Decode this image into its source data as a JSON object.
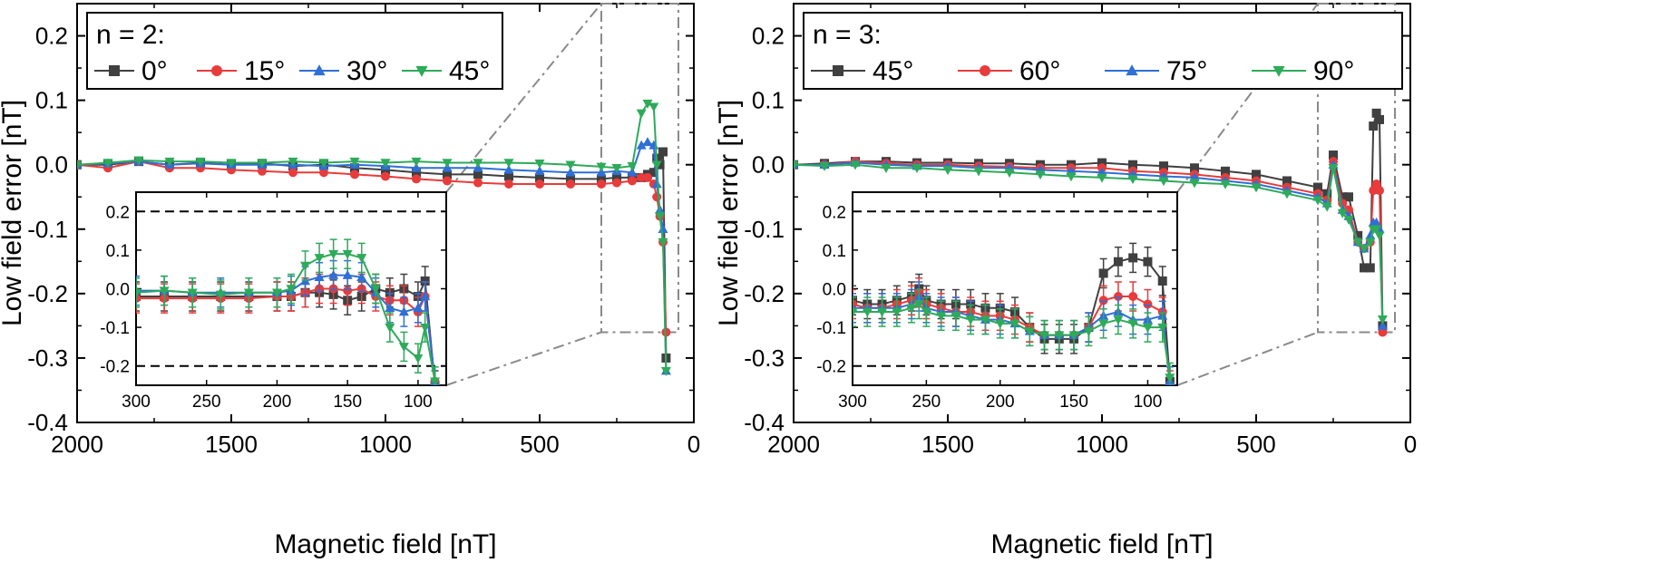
{
  "chart_data": [
    {
      "type": "line",
      "panel": "left",
      "legend_title": "n = 2:",
      "xlabel": "Magnetic field [nT]",
      "ylabel": "Low field error [nT]",
      "xlim": [
        2000,
        0
      ],
      "ylim": [
        -0.4,
        0.25
      ],
      "x_ticks": [
        "2000",
        "1500",
        "1000",
        "500",
        "0"
      ],
      "y_ticks": [
        "0.2",
        "0.1",
        "0.0",
        "-0.1",
        "-0.2",
        "-0.3",
        "-0.4"
      ],
      "legend_position": "top-left",
      "zoom_region": {
        "x": [
          300,
          50
        ],
        "y": [
          -0.26,
          0.25
        ]
      },
      "series": [
        {
          "name": "0°",
          "color": "#404040",
          "marker": "square",
          "x": [
            2000,
            1900,
            1800,
            1700,
            1600,
            1500,
            1400,
            1300,
            1200,
            1100,
            1000,
            900,
            800,
            700,
            600,
            500,
            400,
            300,
            250,
            200,
            170,
            150,
            130,
            120,
            110,
            100,
            90
          ],
          "y": [
            0.0,
            0.0,
            0.005,
            0.0,
            0.003,
            0.0,
            0.002,
            -0.002,
            0.0,
            -0.005,
            -0.008,
            -0.012,
            -0.015,
            -0.015,
            -0.018,
            -0.02,
            -0.022,
            -0.022,
            -0.02,
            -0.02,
            -0.02,
            -0.015,
            -0.012,
            0.01,
            0.0,
            0.02,
            -0.3
          ]
        },
        {
          "name": "15°",
          "color": "#e83b3b",
          "marker": "circle",
          "x": [
            2000,
            1900,
            1800,
            1700,
            1600,
            1500,
            1400,
            1300,
            1200,
            1100,
            1000,
            900,
            800,
            700,
            600,
            500,
            400,
            300,
            250,
            200,
            170,
            150,
            130,
            120,
            110,
            100,
            90
          ],
          "y": [
            0.0,
            -0.005,
            0.005,
            -0.005,
            -0.005,
            -0.008,
            -0.01,
            -0.012,
            -0.012,
            -0.015,
            -0.018,
            -0.022,
            -0.025,
            -0.028,
            -0.03,
            -0.03,
            -0.03,
            -0.03,
            -0.028,
            -0.025,
            -0.02,
            -0.02,
            -0.03,
            -0.05,
            -0.08,
            -0.12,
            -0.26
          ]
        },
        {
          "name": "30°",
          "color": "#2f6fd6",
          "marker": "triangle-up",
          "x": [
            2000,
            1900,
            1800,
            1700,
            1600,
            1500,
            1400,
            1300,
            1200,
            1100,
            1000,
            900,
            800,
            700,
            600,
            500,
            400,
            300,
            250,
            200,
            170,
            150,
            130,
            120,
            110,
            100,
            90
          ],
          "y": [
            0.0,
            0.002,
            0.005,
            0.0,
            0.002,
            0.0,
            0.0,
            0.0,
            -0.002,
            0.0,
            -0.002,
            -0.005,
            -0.005,
            -0.005,
            -0.008,
            -0.01,
            -0.012,
            -0.012,
            -0.01,
            -0.012,
            0.03,
            0.035,
            0.03,
            -0.03,
            -0.07,
            -0.1,
            -0.32
          ]
        },
        {
          "name": "45°",
          "color": "#2eaa5a",
          "marker": "triangle-down",
          "x": [
            2000,
            1900,
            1800,
            1700,
            1600,
            1500,
            1400,
            1300,
            1200,
            1100,
            1000,
            900,
            800,
            700,
            600,
            500,
            400,
            300,
            250,
            200,
            170,
            150,
            130,
            120,
            110,
            100,
            90
          ],
          "y": [
            0.0,
            0.003,
            0.007,
            0.005,
            0.005,
            0.003,
            0.003,
            0.005,
            0.003,
            0.005,
            0.003,
            0.005,
            0.003,
            0.003,
            0.003,
            0.002,
            0.0,
            -0.003,
            -0.005,
            -0.002,
            0.08,
            0.095,
            0.09,
            0.0,
            -0.08,
            -0.12,
            -0.32
          ]
        }
      ],
      "inset": {
        "xlim": [
          300,
          80
        ],
        "ylim": [
          -0.25,
          0.25
        ],
        "x_ticks": [
          "300",
          "250",
          "200",
          "150",
          "100"
        ],
        "y_ticks": [
          "0.2",
          "0.1",
          "0.0",
          "-0.1",
          "-0.2"
        ],
        "dashed_lines_y": [
          0.2,
          -0.2
        ],
        "series": [
          {
            "name": "0°",
            "x": [
              300,
              280,
              260,
              240,
              220,
              200,
              190,
              180,
              170,
              160,
              150,
              140,
              130,
              120,
              110,
              100,
              95,
              88
            ],
            "y": [
              -0.02,
              -0.02,
              -0.02,
              -0.02,
              -0.02,
              -0.02,
              -0.02,
              -0.01,
              -0.01,
              -0.015,
              -0.03,
              -0.02,
              0.0,
              -0.01,
              0.0,
              -0.02,
              0.02,
              -0.25
            ]
          },
          {
            "name": "15°",
            "x": [
              300,
              280,
              260,
              240,
              220,
              200,
              190,
              180,
              170,
              160,
              150,
              140,
              130,
              120,
              110,
              100,
              95,
              88
            ],
            "y": [
              -0.025,
              -0.025,
              -0.025,
              -0.025,
              -0.025,
              -0.02,
              -0.02,
              -0.01,
              0.0,
              0.0,
              -0.005,
              0.0,
              -0.02,
              -0.03,
              -0.03,
              -0.06,
              -0.02,
              -0.24
            ]
          },
          {
            "name": "30°",
            "x": [
              300,
              280,
              260,
              240,
              220,
              200,
              190,
              180,
              170,
              160,
              150,
              140,
              130,
              120,
              110,
              100,
              95,
              88
            ],
            "y": [
              -0.005,
              -0.005,
              -0.01,
              -0.01,
              -0.01,
              -0.01,
              -0.005,
              0.02,
              0.03,
              0.035,
              0.035,
              0.03,
              -0.01,
              -0.05,
              -0.06,
              -0.05,
              -0.02,
              -0.24
            ]
          },
          {
            "name": "45°",
            "x": [
              300,
              280,
              260,
              240,
              220,
              200,
              190,
              180,
              170,
              160,
              150,
              140,
              130,
              120,
              110,
              100,
              95,
              88
            ],
            "y": [
              -0.01,
              -0.005,
              -0.01,
              -0.015,
              -0.01,
              -0.01,
              0.0,
              0.06,
              0.08,
              0.09,
              0.09,
              0.08,
              0.0,
              -0.1,
              -0.15,
              -0.18,
              -0.1,
              -0.24
            ]
          }
        ]
      }
    },
    {
      "type": "line",
      "panel": "right",
      "legend_title": "n = 3:",
      "xlabel": "Magnetic field [nT]",
      "ylabel": "Low field error [nT]",
      "xlim": [
        2000,
        0
      ],
      "ylim": [
        -0.4,
        0.25
      ],
      "x_ticks": [
        "2000",
        "1500",
        "1000",
        "500",
        "0"
      ],
      "y_ticks": [
        "0.2",
        "0.1",
        "0.0",
        "-0.1",
        "-0.2",
        "-0.3",
        "-0.4"
      ],
      "legend_position": "top-left",
      "zoom_region": {
        "x": [
          300,
          50
        ],
        "y": [
          -0.26,
          0.25
        ]
      },
      "series": [
        {
          "name": "45°",
          "color": "#404040",
          "marker": "square",
          "x": [
            2000,
            1900,
            1800,
            1700,
            1600,
            1500,
            1400,
            1300,
            1200,
            1100,
            1000,
            900,
            800,
            700,
            600,
            500,
            400,
            300,
            270,
            250,
            220,
            200,
            170,
            150,
            130,
            120,
            110,
            100,
            90
          ],
          "y": [
            0.0,
            0.002,
            0.005,
            0.005,
            0.003,
            0.003,
            0.002,
            0.002,
            0.0,
            0.0,
            0.003,
            0.0,
            -0.002,
            -0.005,
            -0.01,
            -0.015,
            -0.025,
            -0.035,
            -0.045,
            0.015,
            -0.05,
            -0.05,
            -0.11,
            -0.16,
            -0.16,
            0.06,
            0.08,
            0.07,
            -0.25
          ]
        },
        {
          "name": "60°",
          "color": "#e83b3b",
          "marker": "circle",
          "x": [
            2000,
            1900,
            1800,
            1700,
            1600,
            1500,
            1400,
            1300,
            1200,
            1100,
            1000,
            900,
            800,
            700,
            600,
            500,
            400,
            300,
            270,
            250,
            220,
            200,
            170,
            150,
            130,
            120,
            110,
            100,
            90
          ],
          "y": [
            0.0,
            0.0,
            0.005,
            0.002,
            0.0,
            0.0,
            -0.002,
            -0.003,
            -0.005,
            -0.005,
            -0.005,
            -0.01,
            -0.012,
            -0.015,
            -0.02,
            -0.025,
            -0.035,
            -0.045,
            -0.055,
            0.005,
            -0.06,
            -0.07,
            -0.12,
            -0.13,
            -0.12,
            -0.04,
            -0.03,
            -0.04,
            -0.26
          ]
        },
        {
          "name": "75°",
          "color": "#2f6fd6",
          "marker": "triangle-up",
          "x": [
            2000,
            1900,
            1800,
            1700,
            1600,
            1500,
            1400,
            1300,
            1200,
            1100,
            1000,
            900,
            800,
            700,
            600,
            500,
            400,
            300,
            270,
            250,
            220,
            200,
            170,
            150,
            130,
            120,
            110,
            100,
            90
          ],
          "y": [
            0.0,
            0.0,
            0.003,
            0.0,
            -0.002,
            -0.002,
            -0.005,
            -0.005,
            -0.008,
            -0.01,
            -0.012,
            -0.015,
            -0.018,
            -0.02,
            -0.025,
            -0.03,
            -0.04,
            -0.05,
            -0.06,
            0.0,
            -0.07,
            -0.08,
            -0.12,
            -0.13,
            -0.11,
            -0.09,
            -0.09,
            -0.1,
            -0.25
          ]
        },
        {
          "name": "90°",
          "color": "#2eaa5a",
          "marker": "triangle-down",
          "x": [
            2000,
            1900,
            1800,
            1700,
            1600,
            1500,
            1400,
            1300,
            1200,
            1100,
            1000,
            900,
            800,
            700,
            600,
            500,
            400,
            300,
            270,
            250,
            220,
            200,
            170,
            150,
            130,
            120,
            110,
            100,
            90
          ],
          "y": [
            0.0,
            -0.002,
            0.0,
            -0.005,
            -0.005,
            -0.008,
            -0.01,
            -0.012,
            -0.015,
            -0.018,
            -0.02,
            -0.022,
            -0.025,
            -0.028,
            -0.03,
            -0.035,
            -0.045,
            -0.055,
            -0.065,
            -0.005,
            -0.075,
            -0.085,
            -0.12,
            -0.13,
            -0.12,
            -0.1,
            -0.1,
            -0.11,
            -0.24
          ]
        }
      ],
      "inset": {
        "xlim": [
          300,
          80
        ],
        "ylim": [
          -0.25,
          0.25
        ],
        "x_ticks": [
          "300",
          "250",
          "200",
          "150",
          "100"
        ],
        "y_ticks": [
          "0.2",
          "0.1",
          "0.0",
          "-0.1",
          "-0.2"
        ],
        "dashed_lines_y": [
          0.2,
          -0.2
        ],
        "series": [
          {
            "name": "45°",
            "x": [
              300,
              290,
              280,
              270,
              260,
              255,
              250,
              240,
              230,
              220,
              210,
              200,
              190,
              180,
              170,
              160,
              150,
              140,
              130,
              120,
              110,
              100,
              90,
              85
            ],
            "y": [
              -0.03,
              -0.04,
              -0.04,
              -0.03,
              -0.02,
              0.0,
              -0.03,
              -0.04,
              -0.04,
              -0.04,
              -0.05,
              -0.05,
              -0.06,
              -0.1,
              -0.13,
              -0.13,
              -0.13,
              -0.1,
              0.04,
              0.07,
              0.08,
              0.07,
              0.02,
              -0.24
            ]
          },
          {
            "name": "60°",
            "x": [
              300,
              290,
              280,
              270,
              260,
              255,
              250,
              240,
              230,
              220,
              210,
              200,
              190,
              180,
              170,
              160,
              150,
              140,
              130,
              120,
              110,
              100,
              90,
              85
            ],
            "y": [
              -0.04,
              -0.05,
              -0.05,
              -0.04,
              -0.03,
              -0.01,
              -0.04,
              -0.05,
              -0.06,
              -0.06,
              -0.07,
              -0.07,
              -0.08,
              -0.1,
              -0.12,
              -0.12,
              -0.12,
              -0.1,
              -0.03,
              -0.02,
              -0.02,
              -0.04,
              -0.06,
              -0.25
            ]
          },
          {
            "name": "75°",
            "x": [
              300,
              290,
              280,
              270,
              260,
              255,
              250,
              240,
              230,
              220,
              210,
              200,
              190,
              180,
              170,
              160,
              150,
              140,
              130,
              120,
              110,
              100,
              90,
              85
            ],
            "y": [
              -0.05,
              -0.05,
              -0.05,
              -0.05,
              -0.04,
              -0.02,
              -0.05,
              -0.06,
              -0.06,
              -0.07,
              -0.08,
              -0.08,
              -0.09,
              -0.11,
              -0.12,
              -0.12,
              -0.12,
              -0.1,
              -0.07,
              -0.06,
              -0.08,
              -0.08,
              -0.07,
              -0.24
            ]
          },
          {
            "name": "90°",
            "x": [
              300,
              290,
              280,
              270,
              260,
              255,
              250,
              240,
              230,
              220,
              210,
              200,
              190,
              180,
              170,
              160,
              150,
              140,
              130,
              120,
              110,
              100,
              90,
              85
            ],
            "y": [
              -0.06,
              -0.06,
              -0.06,
              -0.06,
              -0.05,
              -0.04,
              -0.06,
              -0.07,
              -0.07,
              -0.08,
              -0.08,
              -0.09,
              -0.09,
              -0.11,
              -0.12,
              -0.12,
              -0.12,
              -0.11,
              -0.09,
              -0.08,
              -0.09,
              -0.1,
              -0.1,
              -0.23
            ]
          }
        ]
      }
    }
  ]
}
